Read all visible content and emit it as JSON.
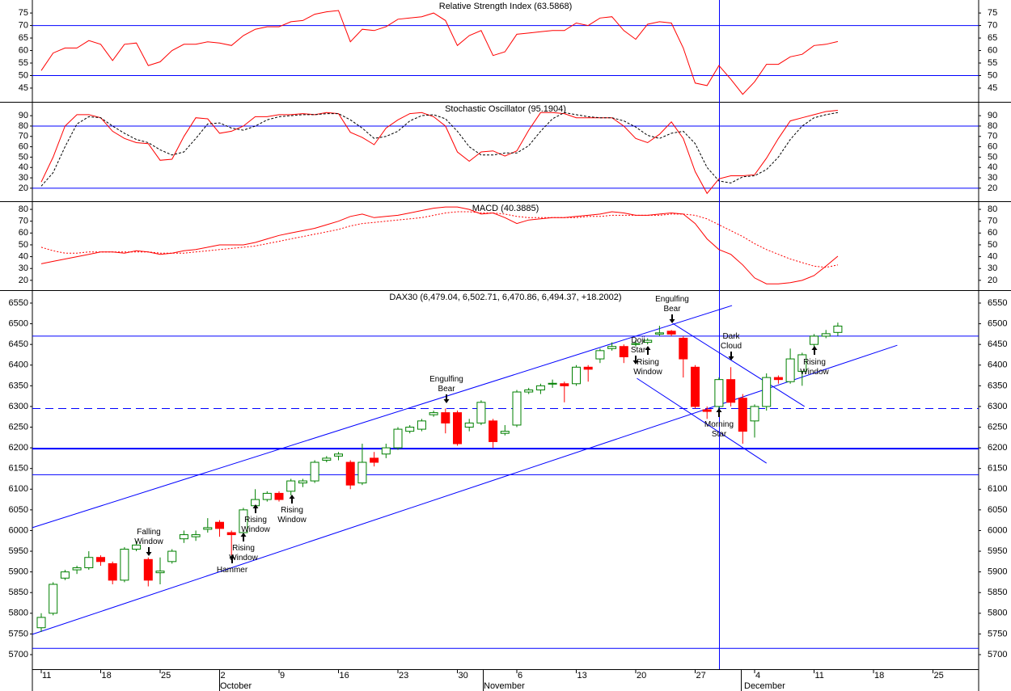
{
  "chart_data": [
    {
      "type": "line",
      "title": "Relative Strength Index (63.5868)",
      "ylim": [
        39.5,
        80.2
      ],
      "yticks": [
        45,
        50,
        55,
        60,
        65,
        70,
        75
      ],
      "hlines": [
        {
          "value": 70
        },
        {
          "value": 50
        }
      ],
      "hline_color": "#0000ff",
      "series": [
        {
          "color": "#ff0000",
          "style": "solid",
          "values": [
            52,
            59,
            61,
            61,
            64,
            62.5,
            56,
            62.5,
            63,
            54,
            55.5,
            60,
            62.5,
            62.5,
            63.5,
            63,
            62,
            66,
            68.5,
            69.5,
            69.5,
            71.5,
            72,
            74.5,
            75.5,
            76,
            63.5,
            68.5,
            68,
            69.5,
            72.5,
            73,
            73.5,
            75,
            72,
            62,
            66,
            68,
            58,
            59.5,
            66.5,
            67,
            67.5,
            68,
            68,
            71,
            70,
            73,
            73.5,
            68,
            64.5,
            70.5,
            71.5,
            71,
            61,
            47,
            46,
            54,
            48.5,
            42.5,
            47.5,
            54.5,
            54.5,
            57.5,
            58.5,
            62,
            62.5,
            63.5868,
            null,
            null,
            null,
            null,
            null,
            null,
            null,
            null,
            null,
            null,
            null
          ]
        }
      ]
    },
    {
      "type": "line",
      "title": "Stochastic Oscillator (95.1904)",
      "ylim": [
        7.4,
        102.6
      ],
      "yticks": [
        20,
        30,
        40,
        50,
        60,
        70,
        80,
        90
      ],
      "hlines": [
        {
          "value": 80
        },
        {
          "value": 20
        }
      ],
      "hline_color": "#0000ff",
      "series": [
        {
          "color": "#ff0000",
          "style": "solid",
          "values": [
            26,
            50,
            80,
            91,
            91,
            88,
            75,
            68,
            64,
            63,
            47,
            48,
            70,
            88,
            87,
            73,
            75,
            80,
            89,
            89,
            91,
            91,
            92,
            91,
            93,
            92,
            74,
            69,
            62,
            78,
            86,
            92,
            93,
            89,
            80,
            55,
            46,
            55,
            56,
            51,
            56,
            76,
            93,
            93,
            92,
            88,
            88,
            88,
            88,
            80,
            68,
            64,
            72,
            84,
            68,
            36,
            15,
            29,
            32,
            32,
            33,
            49,
            68,
            85,
            88,
            91,
            94,
            95.1904,
            null,
            null,
            null,
            null,
            null,
            null,
            null,
            null,
            null,
            null,
            null
          ]
        },
        {
          "color": "#000000",
          "style": "dashed",
          "values": [
            22,
            35,
            60,
            82,
            89,
            88,
            80,
            73,
            67,
            64,
            57,
            52,
            55,
            68,
            82,
            83,
            78,
            76,
            80,
            86,
            89,
            90,
            91,
            91,
            92,
            92,
            86,
            78,
            68,
            70,
            75,
            85,
            90,
            91,
            87,
            75,
            60,
            52,
            52,
            54,
            54,
            61,
            75,
            87,
            93,
            91,
            89,
            88,
            88,
            85,
            79,
            71,
            68,
            73,
            75,
            63,
            40,
            27,
            25,
            31,
            32,
            38,
            50,
            67,
            80,
            88,
            91,
            93,
            null,
            null,
            null,
            null,
            null,
            null,
            null,
            null,
            null,
            null,
            null
          ]
        }
      ]
    },
    {
      "type": "line",
      "title": "MACD (40.3885)",
      "ylim": [
        11.7,
        86.2
      ],
      "yticks": [
        20,
        30,
        40,
        50,
        60,
        70,
        80
      ],
      "hlines": [],
      "hline_color": "#0000ff",
      "series": [
        {
          "color": "#ff0000",
          "style": "solid",
          "values": [
            34,
            36,
            38,
            40,
            42,
            44,
            44,
            43,
            45,
            44,
            42,
            43,
            45,
            46,
            48,
            50,
            50,
            50,
            52,
            55,
            58,
            60,
            62,
            64,
            67,
            70,
            74,
            76,
            73,
            74,
            75,
            77,
            79,
            81,
            82,
            82,
            80,
            76,
            77,
            73,
            68,
            71,
            72,
            73,
            73,
            74,
            75,
            76,
            78,
            77,
            75,
            75,
            76,
            77,
            76,
            68,
            55,
            46,
            42,
            33,
            22,
            17,
            17,
            18,
            20,
            24,
            32,
            40.3885,
            null,
            null,
            null,
            null,
            null,
            null,
            null,
            null,
            null,
            null,
            null
          ]
        },
        {
          "color": "#ff0000",
          "style": "dotted",
          "values": [
            48,
            45,
            43,
            43,
            44,
            44,
            44,
            44,
            44,
            44,
            43,
            43,
            43,
            44,
            45,
            46,
            47,
            48,
            49,
            51,
            53,
            55,
            57,
            59,
            61,
            63,
            66,
            68,
            69,
            70,
            71,
            72,
            73,
            75,
            77,
            78,
            78,
            77,
            77,
            76,
            74,
            73,
            73,
            73,
            73,
            73,
            74,
            74,
            75,
            75,
            75,
            75,
            75,
            76,
            76,
            75,
            72,
            67,
            62,
            57,
            51,
            46,
            42,
            38,
            35,
            32,
            31,
            33,
            null,
            null,
            null,
            null,
            null,
            null,
            null,
            null,
            null,
            null,
            null
          ]
        }
      ]
    },
    {
      "type": "candlestick",
      "title": "DAX30 (6,479.04, 6,502.71, 6,470.86, 6,494.37, +18.2002)",
      "ylim": [
        5664.8,
        6579.3
      ],
      "yticks": [
        5700,
        5750,
        5800,
        5850,
        5900,
        5950,
        6000,
        6050,
        6100,
        6150,
        6200,
        6250,
        6300,
        6350,
        6400,
        6450,
        6500,
        6550
      ],
      "hlines": [
        {
          "value": 6470,
          "style": "solid"
        },
        {
          "value": 6295,
          "style": "dashed"
        },
        {
          "value": 6198,
          "style": "thick"
        },
        {
          "value": 6135,
          "style": "solid"
        },
        {
          "value": 5715,
          "style": "solid"
        }
      ],
      "hline_color": "#0000ff",
      "up_color": "#008000",
      "down_color": "#ff0000",
      "categories": [
        "11",
        null,
        null,
        null,
        null,
        "18",
        null,
        null,
        null,
        null,
        "25",
        null,
        null,
        null,
        null,
        "2",
        null,
        null,
        null,
        null,
        "9",
        null,
        null,
        null,
        null,
        "16",
        null,
        null,
        null,
        null,
        "23",
        null,
        null,
        null,
        null,
        "30",
        null,
        null,
        null,
        null,
        "6",
        null,
        null,
        null,
        null,
        "13",
        null,
        null,
        null,
        null,
        "20",
        null,
        null,
        null,
        null,
        "27",
        null,
        null,
        null,
        null,
        "4",
        null,
        null,
        null,
        null,
        "11",
        null,
        null,
        null,
        null,
        "18",
        null,
        null,
        null,
        null,
        "25",
        null,
        null,
        null
      ],
      "months": [
        "October",
        "November",
        "December"
      ],
      "open": [
        5765,
        5800,
        5885,
        5905,
        5910,
        5935,
        5920,
        5880,
        5955,
        5930,
        5898,
        5925,
        5980,
        5985,
        6003,
        6020,
        5995,
        5995,
        6060,
        6075,
        6090,
        6095,
        6115,
        6120,
        6170,
        6180,
        6165,
        6115,
        6175,
        6185,
        6200,
        6240,
        6245,
        6280,
        6285,
        6285,
        6250,
        6260,
        6265,
        6235,
        6255,
        6335,
        6340,
        6354,
        6355,
        6355,
        6395,
        6415,
        6440,
        6445,
        6450,
        6455,
        6475,
        6482,
        6465,
        6395,
        6292,
        6300,
        6365,
        6320,
        6265,
        6300,
        6370,
        6360,
        6385,
        6450,
        6470,
        6479.04,
        null,
        null,
        null,
        null,
        null,
        null,
        null,
        null,
        null,
        null,
        null
      ],
      "high": [
        5800,
        5875,
        5905,
        5915,
        5950,
        5940,
        5925,
        5960,
        5975,
        5935,
        5935,
        5955,
        6000,
        6000,
        6030,
        6025,
        6000,
        6055,
        6100,
        6095,
        6095,
        6125,
        6125,
        6170,
        6180,
        6190,
        6170,
        6210,
        6190,
        6210,
        6250,
        6255,
        6270,
        6290,
        6295,
        6290,
        6270,
        6315,
        6270,
        6255,
        6340,
        6345,
        6355,
        6365,
        6360,
        6400,
        6400,
        6440,
        6455,
        6450,
        6460,
        6465,
        6495,
        6485,
        6470,
        6400,
        6300,
        6370,
        6395,
        6330,
        6305,
        6380,
        6375,
        6440,
        6430,
        6475,
        6485,
        6502.71,
        null,
        null,
        null,
        null,
        null,
        null,
        null,
        null,
        null,
        null,
        null
      ],
      "low": [
        5755,
        5795,
        5880,
        5895,
        5905,
        5915,
        5870,
        5875,
        5950,
        5865,
        5870,
        5920,
        5970,
        5975,
        5995,
        5985,
        5940,
        5990,
        6055,
        6070,
        6070,
        6085,
        6105,
        6115,
        6165,
        6170,
        6100,
        6110,
        6155,
        6175,
        6195,
        6235,
        6240,
        6275,
        6235,
        6205,
        6240,
        6255,
        6200,
        6230,
        6250,
        6330,
        6330,
        6345,
        6310,
        6350,
        6360,
        6405,
        6435,
        6405,
        6445,
        6450,
        6470,
        6470,
        6370,
        6295,
        6270,
        6295,
        6300,
        6210,
        6225,
        6290,
        6355,
        6355,
        6350,
        6440,
        6465,
        6470.86,
        null,
        null,
        null,
        null,
        null,
        null,
        null,
        null,
        null,
        null,
        null
      ],
      "close": [
        5790,
        5870,
        5900,
        5910,
        5935,
        5925,
        5880,
        5955,
        5965,
        5880,
        5902,
        5950,
        5990,
        5990,
        6007,
        6005,
        5990,
        6050,
        6075,
        6090,
        6075,
        6120,
        6120,
        6165,
        6175,
        6185,
        6110,
        6165,
        6165,
        6200,
        6245,
        6250,
        6265,
        6285,
        6260,
        6210,
        6260,
        6310,
        6215,
        6240,
        6335,
        6340,
        6350,
        6356,
        6350,
        6395,
        6390,
        6435,
        6445,
        6420,
        6452,
        6460,
        6478,
        6475,
        6415,
        6300,
        6288,
        6365,
        6310,
        6240,
        6300,
        6370,
        6365,
        6415,
        6425,
        6470,
        6476,
        6494.37,
        null,
        null,
        null,
        null,
        null,
        null,
        null,
        null,
        null,
        null,
        null
      ],
      "trendlines": [
        {
          "x": [
            -0.75,
            58.1
          ],
          "y": [
            6007,
            6544
          ]
        },
        {
          "x": [
            -0.75,
            72.0
          ],
          "y": [
            5749,
            6448
          ]
        },
        {
          "x": [
            53.1,
            64.2
          ],
          "y": [
            6501,
            6300
          ]
        },
        {
          "x": [
            50.1,
            61.0
          ],
          "y": [
            6368,
            6163
          ]
        }
      ],
      "annotations": [
        {
          "lines": [
            "Falling",
            "Window"
          ]
        },
        {
          "lines": [
            "Hammer"
          ]
        },
        {
          "lines": [
            "Rising",
            "Window"
          ]
        },
        {
          "lines": [
            "Rising",
            "Window"
          ]
        },
        {
          "lines": [
            "Rising",
            "Window"
          ]
        },
        {
          "lines": [
            "Engulfing",
            "Bear"
          ]
        },
        {
          "lines": [
            "Doji",
            "Star"
          ]
        },
        {
          "lines": [
            "Rising",
            "Window"
          ]
        },
        {
          "lines": [
            "Engulfing",
            "Bear"
          ]
        },
        {
          "lines": [
            "Dark",
            "Cloud"
          ]
        },
        {
          "lines": [
            "Morning",
            "Star"
          ]
        },
        {
          "lines": [
            "Rising",
            "Window"
          ]
        }
      ]
    }
  ]
}
